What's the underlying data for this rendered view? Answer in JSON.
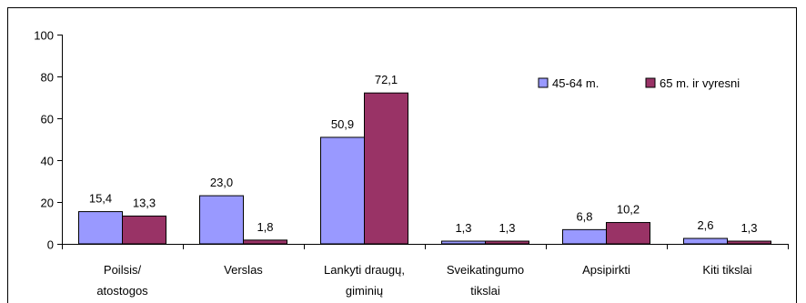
{
  "chart_data": {
    "type": "bar",
    "title": "",
    "xlabel": "",
    "ylabel": "",
    "ylim": [
      0,
      100
    ],
    "yticks": [
      0,
      20,
      40,
      60,
      80,
      100
    ],
    "grid": false,
    "legend_position": "right, inside plot area",
    "categories": [
      [
        "Poilsis/",
        "atostogos"
      ],
      [
        "Verslas"
      ],
      [
        "Lankyti draugų,",
        "giminių"
      ],
      [
        "Sveikatingumo",
        "tikslai"
      ],
      [
        "Apsipirkti"
      ],
      [
        "Kiti tikslai"
      ]
    ],
    "series": [
      {
        "name": "45-64 m.",
        "color": "#9999ff",
        "values": [
          15.4,
          23.0,
          50.9,
          1.3,
          6.8,
          2.6
        ],
        "labels": [
          "15,4",
          "23,0",
          "50,9",
          "1,3",
          "6,8",
          "2,6"
        ]
      },
      {
        "name": "65 m. ir vyresni",
        "color": "#993366",
        "values": [
          13.3,
          1.8,
          72.1,
          1.3,
          10.2,
          1.3
        ],
        "labels": [
          "13,3",
          "1,8",
          "72,1",
          "1,3",
          "10,2",
          "1,3"
        ]
      }
    ]
  }
}
